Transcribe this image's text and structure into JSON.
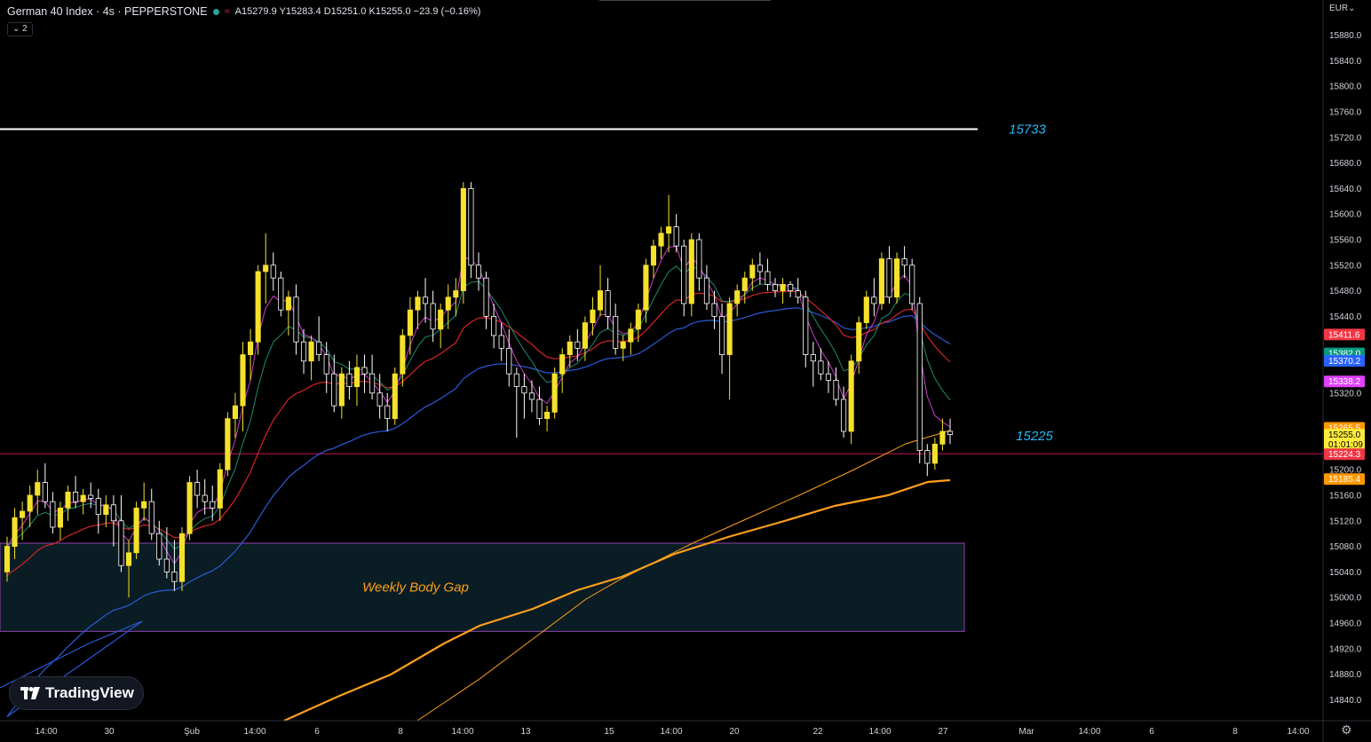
{
  "header": {
    "symbol": "German 40 Index · 4s · PEPPERSTONE",
    "wave_icon": "≈",
    "ohlc": "A15279.9  Y15283.4  D15251.0  K15255.0  −23.9 (−0.16%)",
    "indicators_toggle": "⌄ 2"
  },
  "currency_label": "EUR⌄",
  "annotations": {
    "upper_level": "15733",
    "lower_level": "15225",
    "gap_label": "Weekly Body Gap"
  },
  "brand": "TradingView",
  "settings_icon": "gear-icon",
  "colors": {
    "bull": "#f5e12b",
    "bear_outline": "#ffffff",
    "ma_red": "#d42424",
    "ma_green": "#1e8a6e",
    "ma_blue": "#2a5bd7",
    "ma_magenta": "#c93ec9",
    "ma_orange": "#ff9f1c",
    "ann_text": "#29b6f6",
    "gap_fill": "#0a1d24",
    "gap_border": "#8e44ad"
  },
  "chart_data": {
    "type": "candlestick",
    "y_ticks": [
      "15880.0",
      "15840.0",
      "15800.0",
      "15760.0",
      "15720.0",
      "15680.0",
      "15640.0",
      "15600.0",
      "15560.0",
      "15520.0",
      "15480.0",
      "15440.0",
      "15320.0",
      "15200.0",
      "15160.0",
      "15120.0",
      "15080.0",
      "15040.0",
      "15000.0",
      "14960.0",
      "14920.0",
      "14880.0",
      "14840.0"
    ],
    "x_ticks": [
      "14:00",
      "30",
      "Şub",
      "14:00",
      "6",
      "8",
      "14:00",
      "13",
      "15",
      "14:00",
      "20",
      "22",
      "14:00",
      "27",
      "Mar",
      "14:00",
      "6",
      "8",
      "14:00"
    ],
    "ylim": [
      14810,
      15935
    ],
    "price_badges": [
      {
        "text": "15411.6",
        "value": 15411.6,
        "color": "#f23645",
        "text_color": "#ffffff"
      },
      {
        "text": "15382.0",
        "value": 15382.0,
        "color": "#089981",
        "text_color": "#ffffff"
      },
      {
        "text": "15370.2",
        "value": 15370.2,
        "color": "#2962ff",
        "text_color": "#ffffff"
      },
      {
        "text": "15338.2",
        "value": 15338.2,
        "color": "#e040fb",
        "text_color": "#ffffff"
      },
      {
        "text": "15265.5",
        "value": 15265.5,
        "color": "#ff9800",
        "text_color": "#ffffff"
      },
      {
        "text": "15255.0",
        "value": 15255.0,
        "color": "#ffeb3b",
        "text_color": "#000000"
      },
      {
        "text": "01:01:09",
        "value": 15240.0,
        "color": "#ffeb3b",
        "text_color": "#000000"
      },
      {
        "text": "15224.3",
        "value": 15224.3,
        "color": "#f23645",
        "text_color": "#ffffff"
      },
      {
        "text": "15185.4",
        "value": 15185.4,
        "color": "#ff9800",
        "text_color": "#ffffff"
      }
    ],
    "hlines": [
      {
        "name": "15733",
        "value": 15733
      },
      {
        "name": "15225",
        "value": 15225
      }
    ],
    "gap_zone": {
      "top": 15085,
      "bottom": 14947,
      "label": "Weekly Body Gap"
    },
    "candles_ohlc": [
      [
        15040,
        15095,
        15025,
        15080
      ],
      [
        15080,
        15140,
        15060,
        15125
      ],
      [
        15125,
        15150,
        15090,
        15135
      ],
      [
        15135,
        15175,
        15110,
        15160
      ],
      [
        15160,
        15200,
        15130,
        15180
      ],
      [
        15180,
        15210,
        15140,
        15150
      ],
      [
        15150,
        15165,
        15100,
        15110
      ],
      [
        15110,
        15150,
        15090,
        15140
      ],
      [
        15140,
        15175,
        15120,
        15165
      ],
      [
        15165,
        15190,
        15140,
        15150
      ],
      [
        15150,
        15170,
        15130,
        15160
      ],
      [
        15160,
        15180,
        15140,
        15155
      ],
      [
        15155,
        15170,
        15100,
        15130
      ],
      [
        15130,
        15160,
        15110,
        15145
      ],
      [
        15145,
        15160,
        15080,
        15120
      ],
      [
        15120,
        15160,
        15040,
        15050
      ],
      [
        15050,
        15090,
        15000,
        15070
      ],
      [
        15070,
        15150,
        15060,
        15140
      ],
      [
        15140,
        15180,
        15120,
        15150
      ],
      [
        15150,
        15170,
        15090,
        15100
      ],
      [
        15100,
        15120,
        15050,
        15060
      ],
      [
        15060,
        15110,
        15030,
        15040
      ],
      [
        15040,
        15090,
        15010,
        15025
      ],
      [
        15025,
        15110,
        15010,
        15100
      ],
      [
        15100,
        15190,
        15090,
        15180
      ],
      [
        15180,
        15200,
        15140,
        15160
      ],
      [
        15160,
        15185,
        15130,
        15150
      ],
      [
        15150,
        15175,
        15120,
        15140
      ],
      [
        15140,
        15210,
        15120,
        15200
      ],
      [
        15200,
        15290,
        15190,
        15280
      ],
      [
        15280,
        15320,
        15250,
        15300
      ],
      [
        15300,
        15400,
        15260,
        15380
      ],
      [
        15380,
        15420,
        15340,
        15400
      ],
      [
        15400,
        15520,
        15380,
        15510
      ],
      [
        15510,
        15570,
        15460,
        15520
      ],
      [
        15520,
        15540,
        15480,
        15500
      ],
      [
        15500,
        15510,
        15440,
        15450
      ],
      [
        15450,
        15480,
        15410,
        15470
      ],
      [
        15470,
        15490,
        15380,
        15400
      ],
      [
        15400,
        15420,
        15350,
        15370
      ],
      [
        15370,
        15410,
        15340,
        15400
      ],
      [
        15400,
        15440,
        15370,
        15380
      ],
      [
        15380,
        15400,
        15320,
        15350
      ],
      [
        15350,
        15380,
        15290,
        15300
      ],
      [
        15300,
        15360,
        15280,
        15350
      ],
      [
        15350,
        15370,
        15310,
        15330
      ],
      [
        15330,
        15380,
        15300,
        15360
      ],
      [
        15360,
        15380,
        15320,
        15350
      ],
      [
        15350,
        15380,
        15310,
        15320
      ],
      [
        15320,
        15350,
        15280,
        15300
      ],
      [
        15300,
        15320,
        15260,
        15280
      ],
      [
        15280,
        15360,
        15270,
        15350
      ],
      [
        15350,
        15420,
        15330,
        15410
      ],
      [
        15410,
        15470,
        15380,
        15450
      ],
      [
        15450,
        15480,
        15420,
        15470
      ],
      [
        15470,
        15500,
        15430,
        15460
      ],
      [
        15460,
        15480,
        15400,
        15420
      ],
      [
        15420,
        15460,
        15390,
        15450
      ],
      [
        15450,
        15490,
        15420,
        15470
      ],
      [
        15470,
        15500,
        15440,
        15480
      ],
      [
        15480,
        15650,
        15460,
        15640
      ],
      [
        15640,
        15650,
        15500,
        15520
      ],
      [
        15520,
        15540,
        15480,
        15500
      ],
      [
        15500,
        15510,
        15420,
        15440
      ],
      [
        15440,
        15460,
        15390,
        15410
      ],
      [
        15410,
        15430,
        15370,
        15390
      ],
      [
        15390,
        15420,
        15330,
        15350
      ],
      [
        15350,
        15360,
        15250,
        15330
      ],
      [
        15330,
        15350,
        15280,
        15320
      ],
      [
        15320,
        15340,
        15290,
        15310
      ],
      [
        15310,
        15330,
        15270,
        15280
      ],
      [
        15280,
        15300,
        15260,
        15290
      ],
      [
        15290,
        15360,
        15280,
        15350
      ],
      [
        15350,
        15390,
        15320,
        15380
      ],
      [
        15380,
        15410,
        15360,
        15400
      ],
      [
        15400,
        15420,
        15370,
        15390
      ],
      [
        15390,
        15440,
        15370,
        15430
      ],
      [
        15430,
        15470,
        15410,
        15450
      ],
      [
        15450,
        15520,
        15440,
        15480
      ],
      [
        15480,
        15500,
        15420,
        15440
      ],
      [
        15440,
        15460,
        15380,
        15390
      ],
      [
        15390,
        15410,
        15370,
        15400
      ],
      [
        15400,
        15430,
        15380,
        15420
      ],
      [
        15420,
        15460,
        15400,
        15450
      ],
      [
        15450,
        15530,
        15430,
        15520
      ],
      [
        15520,
        15560,
        15500,
        15550
      ],
      [
        15550,
        15580,
        15530,
        15570
      ],
      [
        15570,
        15630,
        15540,
        15580
      ],
      [
        15580,
        15600,
        15540,
        15550
      ],
      [
        15550,
        15560,
        15440,
        15460
      ],
      [
        15460,
        15570,
        15440,
        15560
      ],
      [
        15560,
        15570,
        15480,
        15500
      ],
      [
        15500,
        15520,
        15450,
        15460
      ],
      [
        15460,
        15480,
        15420,
        15440
      ],
      [
        15440,
        15460,
        15350,
        15380
      ],
      [
        15380,
        15470,
        15310,
        15460
      ],
      [
        15460,
        15490,
        15440,
        15480
      ],
      [
        15480,
        15510,
        15460,
        15500
      ],
      [
        15500,
        15530,
        15480,
        15520
      ],
      [
        15520,
        15540,
        15490,
        15510
      ],
      [
        15510,
        15530,
        15480,
        15490
      ],
      [
        15490,
        15500,
        15470,
        15480
      ],
      [
        15480,
        15500,
        15460,
        15490
      ],
      [
        15490,
        15495,
        15470,
        15480
      ],
      [
        15480,
        15500,
        15460,
        15470
      ],
      [
        15470,
        15480,
        15360,
        15380
      ],
      [
        15380,
        15400,
        15330,
        15370
      ],
      [
        15370,
        15390,
        15340,
        15350
      ],
      [
        15350,
        15370,
        15320,
        15340
      ],
      [
        15340,
        15360,
        15300,
        15310
      ],
      [
        15310,
        15330,
        15250,
        15260
      ],
      [
        15260,
        15380,
        15240,
        15370
      ],
      [
        15370,
        15440,
        15350,
        15430
      ],
      [
        15430,
        15480,
        15420,
        15470
      ],
      [
        15470,
        15500,
        15440,
        15460
      ],
      [
        15460,
        15540,
        15450,
        15530
      ],
      [
        15530,
        15550,
        15460,
        15470
      ],
      [
        15470,
        15540,
        15460,
        15530
      ],
      [
        15530,
        15550,
        15500,
        15520
      ],
      [
        15520,
        15530,
        15450,
        15460
      ],
      [
        15460,
        15470,
        15210,
        15230
      ],
      [
        15230,
        15240,
        15190,
        15210
      ],
      [
        15210,
        15250,
        15200,
        15240
      ],
      [
        15240,
        15280,
        15230,
        15260
      ],
      [
        15260,
        15280,
        15240,
        15255
      ]
    ]
  }
}
